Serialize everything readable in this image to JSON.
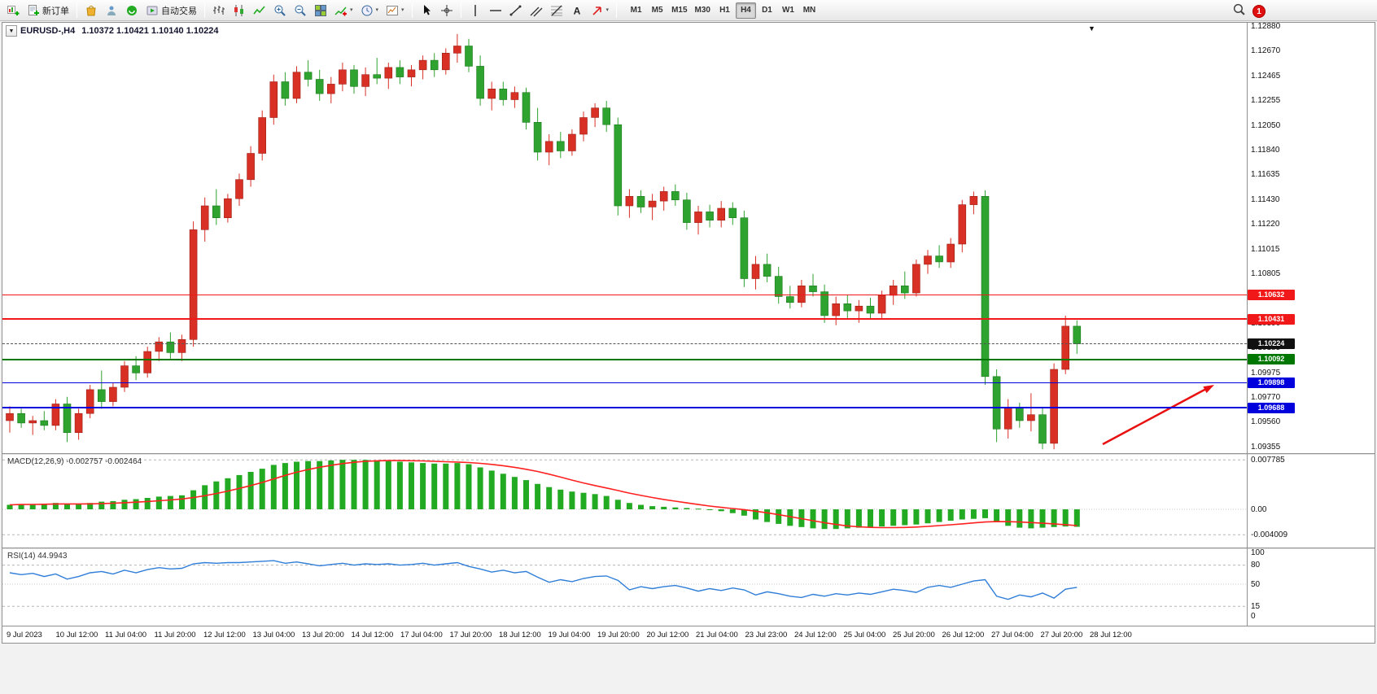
{
  "toolbar": {
    "new_order_label": "新订单",
    "auto_trading_label": "自动交易",
    "timeframes": [
      "M1",
      "M5",
      "M15",
      "M30",
      "H1",
      "H4",
      "D1",
      "W1",
      "MN"
    ],
    "active_timeframe": "H4",
    "notification_count": "1",
    "icons": [
      "new-chart",
      "new-order",
      "marketplace",
      "signals",
      "community",
      "auto-trading",
      "bar-chart",
      "candlestick-chart",
      "line-chart",
      "zoom-in",
      "zoom-out",
      "tile-windows",
      "indicators",
      "periods",
      "templates",
      "cursor",
      "crosshair",
      "vertical-line",
      "horizontal-line",
      "trendline",
      "equidistant-channel",
      "fibonacci",
      "text",
      "arrows",
      "search",
      "notification"
    ]
  },
  "chart": {
    "symbol": "EURUSD-,H4",
    "ohlc_readout": "1.10372 1.10421 1.10140 1.10224",
    "shift_marker": "▼",
    "price_axis": [
      "1.12880",
      "1.12670",
      "1.12465",
      "1.12255",
      "1.12050",
      "1.11840",
      "1.11635",
      "1.11430",
      "1.11220",
      "1.11015",
      "1.10805",
      "1.10600",
      "1.10390",
      "1.10185",
      "1.09975",
      "1.09770",
      "1.09560",
      "1.09355"
    ],
    "price_levels": [
      {
        "price": "1.10632",
        "value": 1.10632,
        "color": "#f01818",
        "style": "solid"
      },
      {
        "price": "1.10431",
        "value": 1.10431,
        "color": "#f01818",
        "style": "solid"
      },
      {
        "price": "1.10224",
        "value": 1.10224,
        "color": "#111111",
        "style": "current"
      },
      {
        "price": "1.10092",
        "value": 1.10092,
        "color": "#007700",
        "style": "solid"
      },
      {
        "price": "1.09898",
        "value": 1.09898,
        "color": "#0000dd",
        "style": "solid"
      },
      {
        "price": "1.09688",
        "value": 1.09688,
        "color": "#0000dd",
        "style": "solid"
      }
    ],
    "time_axis": [
      "9 Jul 2023",
      "10 Jul 12:00",
      "11 Jul 04:00",
      "11 Jul 20:00",
      "12 Jul 12:00",
      "13 Jul 04:00",
      "13 Jul 20:00",
      "14 Jul 12:00",
      "17 Jul 04:00",
      "17 Jul 20:00",
      "18 Jul 12:00",
      "19 Jul 04:00",
      "19 Jul 20:00",
      "20 Jul 12:00",
      "21 Jul 04:00",
      "23 Jul 23:00",
      "24 Jul 12:00",
      "25 Jul 04:00",
      "25 Jul 20:00",
      "26 Jul 12:00",
      "27 Jul 04:00",
      "27 Jul 20:00",
      "28 Jul 12:00"
    ]
  },
  "macd": {
    "label": "MACD(12,26,9) -0.002757 -0.002464",
    "axis": [
      "0.007785",
      "0.00",
      "-0.004009"
    ]
  },
  "rsi": {
    "label": "RSI(14) 44.9943",
    "axis": [
      "100",
      "80",
      "50",
      "15",
      "0"
    ]
  },
  "chart_data": [
    {
      "type": "candlestick",
      "title": "EURUSD- H4",
      "ylim": [
        1.09355,
        1.1288
      ],
      "up_color": "#d93025",
      "down_color": "#2fa32f",
      "candles": [
        [
          1.0958,
          1.097,
          1.0948,
          1.0964
        ],
        [
          1.0964,
          1.0968,
          1.0952,
          1.0956
        ],
        [
          1.0956,
          1.0962,
          1.0946,
          1.0958
        ],
        [
          1.0958,
          1.0966,
          1.095,
          1.0954
        ],
        [
          1.0954,
          1.0976,
          1.095,
          1.0972
        ],
        [
          1.0972,
          1.0978,
          1.094,
          1.0948
        ],
        [
          1.0948,
          1.0968,
          1.0942,
          1.0964
        ],
        [
          1.0964,
          1.0988,
          1.096,
          1.0984
        ],
        [
          1.0984,
          1.1,
          1.0968,
          1.0974
        ],
        [
          1.0974,
          1.099,
          1.097,
          1.0986
        ],
        [
          1.0986,
          1.1008,
          1.0982,
          1.1004
        ],
        [
          1.1004,
          1.1012,
          1.0992,
          1.0998
        ],
        [
          1.0998,
          1.102,
          1.0994,
          1.1016
        ],
        [
          1.1016,
          1.1028,
          1.1008,
          1.1024
        ],
        [
          1.1024,
          1.1032,
          1.101,
          1.1015
        ],
        [
          1.1015,
          1.103,
          1.1008,
          1.1026
        ],
        [
          1.1026,
          1.1125,
          1.102,
          1.1118
        ],
        [
          1.1118,
          1.1145,
          1.1108,
          1.1138
        ],
        [
          1.1138,
          1.1152,
          1.1122,
          1.1128
        ],
        [
          1.1128,
          1.1148,
          1.1124,
          1.1144
        ],
        [
          1.1144,
          1.1165,
          1.1138,
          1.116
        ],
        [
          1.116,
          1.1188,
          1.1154,
          1.1182
        ],
        [
          1.1182,
          1.1218,
          1.1176,
          1.1212
        ],
        [
          1.1212,
          1.1248,
          1.1206,
          1.1242
        ],
        [
          1.1242,
          1.125,
          1.1222,
          1.1228
        ],
        [
          1.1228,
          1.1255,
          1.1224,
          1.125
        ],
        [
          1.125,
          1.126,
          1.1238,
          1.1244
        ],
        [
          1.1244,
          1.1252,
          1.1226,
          1.1232
        ],
        [
          1.1232,
          1.1246,
          1.1224,
          1.124
        ],
        [
          1.124,
          1.1258,
          1.1234,
          1.1252
        ],
        [
          1.1252,
          1.1256,
          1.1232,
          1.1238
        ],
        [
          1.1238,
          1.1254,
          1.123,
          1.1248
        ],
        [
          1.1248,
          1.1262,
          1.124,
          1.1245
        ],
        [
          1.1245,
          1.1258,
          1.1236,
          1.1254
        ],
        [
          1.1254,
          1.126,
          1.124,
          1.1246
        ],
        [
          1.1246,
          1.1256,
          1.1238,
          1.1252
        ],
        [
          1.1252,
          1.1264,
          1.1244,
          1.126
        ],
        [
          1.126,
          1.1266,
          1.1246,
          1.1252
        ],
        [
          1.1252,
          1.127,
          1.1248,
          1.1266
        ],
        [
          1.1266,
          1.1282,
          1.1258,
          1.1272
        ],
        [
          1.1272,
          1.1278,
          1.125,
          1.1255
        ],
        [
          1.1255,
          1.1264,
          1.1222,
          1.1228
        ],
        [
          1.1228,
          1.1242,
          1.1218,
          1.1236
        ],
        [
          1.1236,
          1.1242,
          1.1222,
          1.1227
        ],
        [
          1.1227,
          1.1238,
          1.122,
          1.1233
        ],
        [
          1.1233,
          1.1237,
          1.1202,
          1.1208
        ],
        [
          1.1208,
          1.122,
          1.1176,
          1.1183
        ],
        [
          1.1183,
          1.1198,
          1.1172,
          1.1192
        ],
        [
          1.1192,
          1.12,
          1.1178,
          1.1184
        ],
        [
          1.1184,
          1.1202,
          1.118,
          1.1198
        ],
        [
          1.1198,
          1.1217,
          1.1192,
          1.1212
        ],
        [
          1.1212,
          1.1224,
          1.1204,
          1.122
        ],
        [
          1.122,
          1.1226,
          1.12,
          1.1206
        ],
        [
          1.1206,
          1.1212,
          1.113,
          1.1138
        ],
        [
          1.1138,
          1.1152,
          1.1128,
          1.1146
        ],
        [
          1.1146,
          1.1151,
          1.1132,
          1.1137
        ],
        [
          1.1137,
          1.1148,
          1.1126,
          1.1142
        ],
        [
          1.1142,
          1.1154,
          1.1134,
          1.115
        ],
        [
          1.115,
          1.1156,
          1.1138,
          1.1143
        ],
        [
          1.1143,
          1.1149,
          1.1118,
          1.1124
        ],
        [
          1.1124,
          1.1138,
          1.1114,
          1.1133
        ],
        [
          1.1133,
          1.1139,
          1.112,
          1.1126
        ],
        [
          1.1126,
          1.1142,
          1.112,
          1.1136
        ],
        [
          1.1136,
          1.1141,
          1.1122,
          1.1128
        ],
        [
          1.1128,
          1.1134,
          1.107,
          1.1077
        ],
        [
          1.1077,
          1.1096,
          1.1068,
          1.1089
        ],
        [
          1.1089,
          1.1098,
          1.1074,
          1.1079
        ],
        [
          1.1079,
          1.1087,
          1.1056,
          1.1062
        ],
        [
          1.1062,
          1.1071,
          1.1052,
          1.1057
        ],
        [
          1.1057,
          1.1076,
          1.1053,
          1.1071
        ],
        [
          1.1071,
          1.1081,
          1.1062,
          1.1066
        ],
        [
          1.1066,
          1.1072,
          1.104,
          1.1046
        ],
        [
          1.1046,
          1.1062,
          1.1038,
          1.1056
        ],
        [
          1.1056,
          1.1063,
          1.1044,
          1.105
        ],
        [
          1.105,
          1.1059,
          1.104,
          1.1054
        ],
        [
          1.1054,
          1.1061,
          1.1043,
          1.1048
        ],
        [
          1.1048,
          1.1067,
          1.1044,
          1.1063
        ],
        [
          1.1063,
          1.1076,
          1.1055,
          1.1071
        ],
        [
          1.1071,
          1.1083,
          1.106,
          1.1065
        ],
        [
          1.1065,
          1.1093,
          1.1062,
          1.1089
        ],
        [
          1.1089,
          1.1101,
          1.1081,
          1.1096
        ],
        [
          1.1096,
          1.1105,
          1.1086,
          1.1091
        ],
        [
          1.1091,
          1.1111,
          1.1086,
          1.1106
        ],
        [
          1.1106,
          1.1143,
          1.1099,
          1.1139
        ],
        [
          1.1139,
          1.115,
          1.1131,
          1.1146
        ],
        [
          1.1146,
          1.1151,
          1.0988,
          1.0995
        ],
        [
          1.0995,
          1.1001,
          1.094,
          1.0951
        ],
        [
          1.0951,
          1.0976,
          1.0943,
          1.0969
        ],
        [
          1.0969,
          1.0973,
          1.0952,
          1.0958
        ],
        [
          1.0958,
          1.0981,
          1.0949,
          1.0963
        ],
        [
          1.0963,
          1.0969,
          1.0934,
          1.0939
        ],
        [
          1.0939,
          1.1006,
          1.0934,
          1.1001
        ],
        [
          1.1001,
          1.1046,
          1.0997,
          1.10372
        ],
        [
          1.10372,
          1.10421,
          1.1014,
          1.10224
        ]
      ]
    },
    {
      "type": "bar",
      "name": "MACD(12,26,9) histogram with signal line",
      "color": "#22aa22",
      "signal_color": "#ff2020",
      "current_macd": -0.002757,
      "current_signal": -0.002464,
      "ylim": [
        -0.004009,
        0.007785
      ],
      "values": [
        0.0007,
        0.0008,
        0.0008,
        0.0009,
        0.001,
        0.0009,
        0.0008,
        0.001,
        0.0012,
        0.0013,
        0.0015,
        0.0016,
        0.0018,
        0.002,
        0.0021,
        0.0022,
        0.003,
        0.0038,
        0.0044,
        0.0049,
        0.0054,
        0.0059,
        0.0064,
        0.007,
        0.0073,
        0.0075,
        0.0076,
        0.0076,
        0.0077,
        0.0078,
        0.0078,
        0.0078,
        0.0077,
        0.0076,
        0.0075,
        0.0074,
        0.0073,
        0.0072,
        0.0072,
        0.0073,
        0.0071,
        0.0066,
        0.0061,
        0.0056,
        0.0051,
        0.0046,
        0.004,
        0.0035,
        0.0031,
        0.0028,
        0.0026,
        0.0024,
        0.0021,
        0.0015,
        0.001,
        0.0007,
        0.0005,
        0.0004,
        0.0003,
        0.0002,
        0.0001,
        -0.0001,
        -0.0003,
        -0.0006,
        -0.001,
        -0.0016,
        -0.002,
        -0.0023,
        -0.0026,
        -0.0028,
        -0.003,
        -0.0031,
        -0.0031,
        -0.003,
        -0.0029,
        -0.0028,
        -0.0027,
        -0.0026,
        -0.0025,
        -0.0024,
        -0.0022,
        -0.002,
        -0.0018,
        -0.0016,
        -0.0015,
        -0.0014,
        -0.002,
        -0.0026,
        -0.0029,
        -0.003,
        -0.0029,
        -0.0028,
        -0.0027,
        -0.00276
      ]
    },
    {
      "type": "line",
      "name": "RSI(14)",
      "color": "#2f7ed8",
      "current_value": 44.9943,
      "ylim": [
        0,
        100
      ],
      "levels": [
        80,
        50,
        15
      ],
      "values": [
        68,
        65,
        67,
        62,
        66,
        58,
        62,
        68,
        70,
        66,
        72,
        68,
        73,
        76,
        74,
        75,
        82,
        84,
        83,
        84,
        84,
        85,
        86,
        87,
        83,
        85,
        82,
        79,
        81,
        83,
        80,
        82,
        81,
        82,
        80,
        81,
        83,
        80,
        82,
        84,
        78,
        74,
        69,
        72,
        68,
        70,
        61,
        53,
        57,
        54,
        59,
        62,
        63,
        56,
        41,
        46,
        43,
        46,
        48,
        44,
        39,
        43,
        40,
        44,
        41,
        33,
        38,
        35,
        31,
        29,
        34,
        31,
        35,
        33,
        36,
        34,
        38,
        42,
        40,
        37,
        45,
        48,
        45,
        50,
        55,
        57,
        31,
        26,
        33,
        30,
        36,
        28,
        42,
        45
      ]
    }
  ]
}
